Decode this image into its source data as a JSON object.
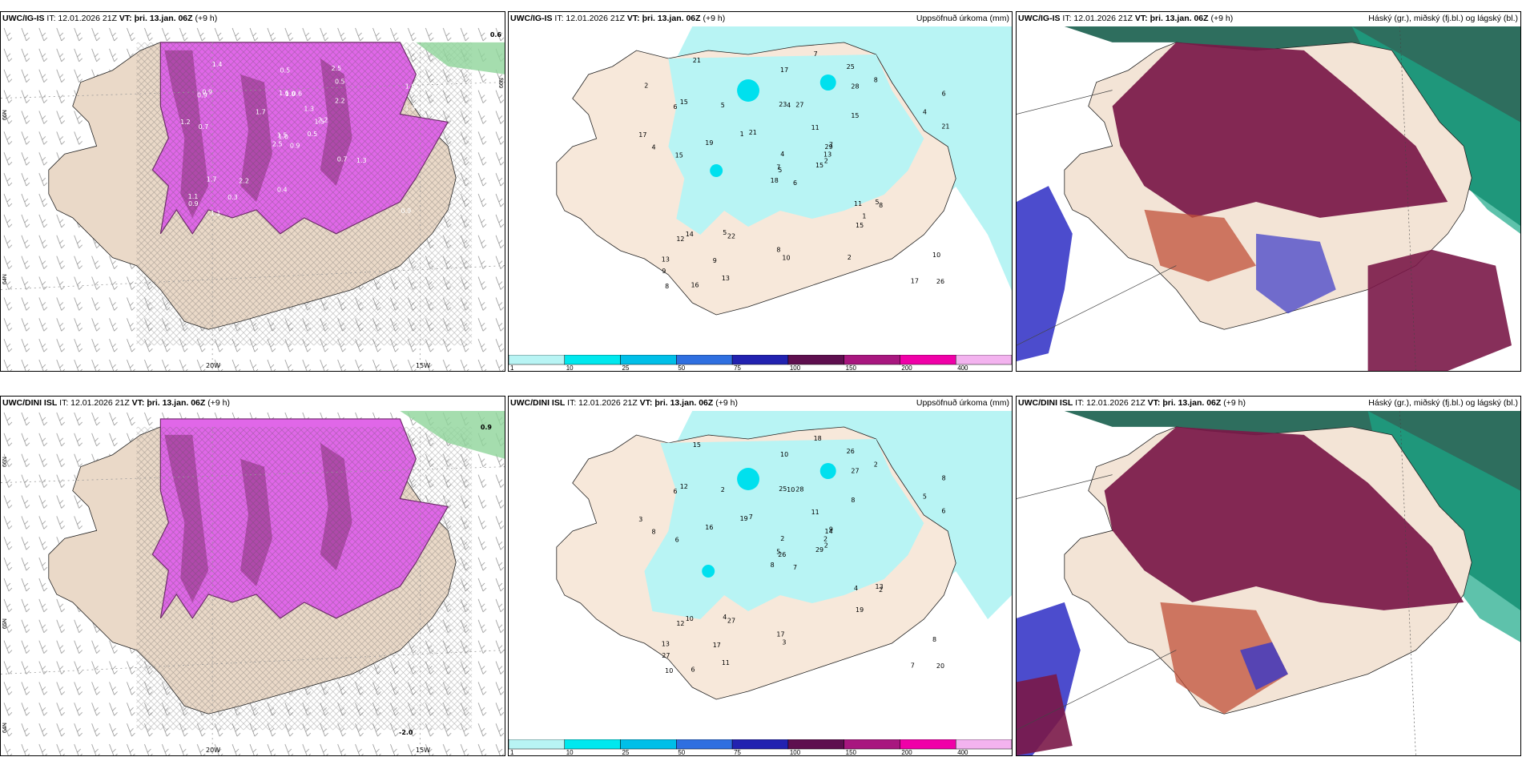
{
  "panels": {
    "p1": {
      "model": "UWC/IG-IS",
      "it": "IT: 12.01.2026 21Z",
      "vt": "VT: þri. 13.jan. 06Z",
      "lead": "(+9 h)",
      "title": ""
    },
    "p2": {
      "model": "UWC/IG-IS",
      "it": "IT: 12.01.2026 21Z",
      "vt": "VT: þri. 13.jan. 06Z",
      "lead": "(+9 h)",
      "title": "Uppsöfnuð úrkoma (mm)"
    },
    "p3": {
      "model": "UWC/IG-IS",
      "it": "IT: 12.01.2026 21Z",
      "vt": "VT: þri. 13.jan. 06Z",
      "lead": "(+9 h)",
      "title": "Háský (gr.), miðský (fj.bl.) og lágský (bl.)"
    },
    "p4": {
      "model": "UWC/DINI ISL",
      "it": "IT: 12.01.2026 21Z",
      "vt": "VT: þri. 13.jan. 06Z",
      "lead": "(+9 h)",
      "title": ""
    },
    "p5": {
      "model": "UWC/DINI ISL",
      "it": "IT: 12.01.2026 21Z",
      "vt": "VT: þri. 13.jan. 06Z",
      "lead": "(+9 h)",
      "title": "Uppsöfnuð úrkoma (mm)"
    },
    "p6": {
      "model": "UWC/DINI ISL",
      "it": "IT: 12.01.2026 21Z",
      "vt": "VT: þri. 13.jan. 06Z",
      "lead": "(+9 h)",
      "title": "Háský (gr.), miðský (fj.bl.) og lágský (bl.)"
    }
  },
  "grid_labels": {
    "lon_20w": "20W",
    "lon_15w": "15W",
    "lat_66n": "66N",
    "lat_64n": "64N",
    "lat_65n": "65N"
  },
  "precip_colorbar": {
    "ticks": [
      "1",
      "10",
      "25",
      "50",
      "75",
      "100",
      "150",
      "200",
      "400"
    ],
    "colors": [
      "#b8f4f4",
      "#00e8ee",
      "#00bfe8",
      "#2f6fe0",
      "#2222b0",
      "#5e0f4f",
      "#a8177f",
      "#f000a8",
      "#f3b3ef"
    ]
  },
  "labels": {
    "p1_corner_value": "0.6",
    "p4_corner_value": "0.9",
    "p4_bottom_value": "-2.0",
    "p1_values": [
      "0.9",
      "0.9",
      "1.0",
      "1.1",
      "1.5",
      "2.2",
      "2.5",
      "0.6",
      "0.5",
      "0.5",
      "1.4",
      "0.9",
      "0.7",
      "1.9",
      "2.5",
      "2.2",
      "1.1",
      "1.6",
      "1.3",
      "1.7",
      "1.7",
      "0.9",
      "0.3",
      "1.0",
      "2.2",
      "1.3",
      "0.9",
      "0.5",
      "1.2",
      "0.7",
      "1.9",
      "1.5",
      "0.4"
    ],
    "p2_values": [
      "6",
      "6",
      "5",
      "13",
      "29",
      "22",
      "25",
      "27",
      "28",
      "15",
      "21",
      "26",
      "15",
      "6",
      "18",
      "15",
      "16",
      "23",
      "11",
      "14",
      "21",
      "9",
      "9",
      "4",
      "7",
      "8",
      "15",
      "17",
      "4",
      "11",
      "21",
      "7",
      "8",
      "4",
      "5",
      "8",
      "5",
      "17",
      "10",
      "5",
      "7",
      "1",
      "19",
      "15",
      "13",
      "17",
      "13",
      "8",
      "10",
      "2",
      "12",
      "4",
      "2",
      "1",
      "2"
    ],
    "p5_values": [
      "7",
      "6",
      "26",
      "13",
      "14",
      "27",
      "26",
      "28",
      "27",
      "29",
      "15",
      "20",
      "6",
      "8",
      "8",
      "8",
      "6",
      "25",
      "11",
      "10",
      "7",
      "27",
      "17",
      "10",
      "9",
      "2",
      "12",
      "10",
      "8",
      "4",
      "6",
      "5",
      "17",
      "2",
      "2",
      "2",
      "4",
      "7",
      "8",
      "13",
      "18",
      "19",
      "16",
      "19",
      "11",
      "3",
      "2",
      "10",
      "3",
      "2",
      "12",
      "5"
    ]
  },
  "cloud_colors": {
    "high": "#1f7a66",
    "high_edge": "#00e0a0",
    "mid": "#7a1848",
    "low": "#3838c8",
    "land": "#f3e4d6"
  }
}
